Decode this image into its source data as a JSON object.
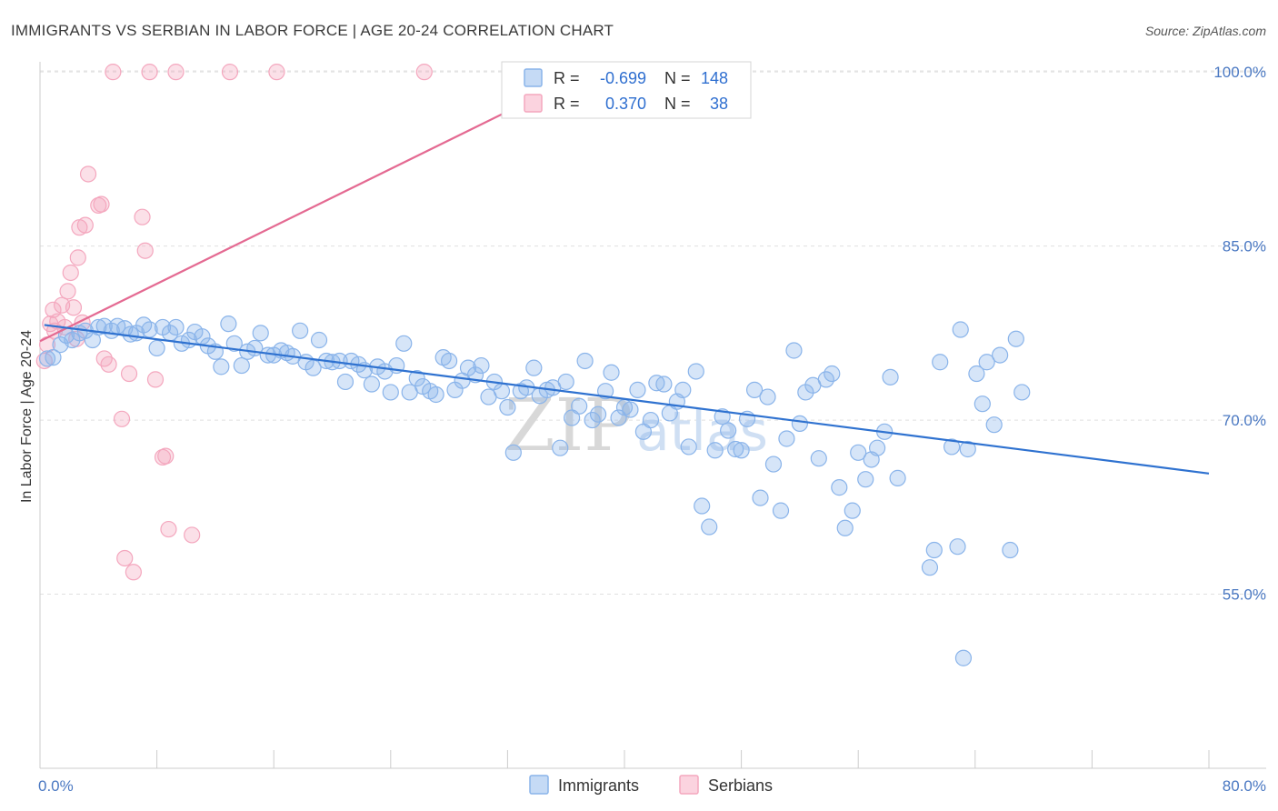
{
  "colors": {
    "immigrants": "#8ab4ea",
    "immigrants_line": "#2f72d0",
    "serbians": "#f4a7be",
    "serbians_line": "#e46a92",
    "tick_label": "#4a78c2",
    "grid": "#e0e0e0"
  },
  "chart_data": {
    "type": "scatter",
    "title": "IMMIGRANTS VS SERBIAN IN LABOR FORCE | AGE 20-24 CORRELATION CHART",
    "source": "Source: ZipAtlas.com",
    "ylabel": "In Labor Force | Age 20-24",
    "xlabel": "",
    "xlim": [
      0,
      80
    ],
    "ylim": [
      40,
      101.5
    ],
    "x_tick_labels": {
      "left": "0.0%",
      "right": "80.0%"
    },
    "y_ticks": [
      {
        "value": 100,
        "label": "100.0%"
      },
      {
        "value": 85,
        "label": "85.0%"
      },
      {
        "value": 70,
        "label": "70.0%"
      },
      {
        "value": 55,
        "label": "55.0%"
      }
    ],
    "legend": {
      "position": "top-center",
      "rows": [
        {
          "r_label": "R =",
          "r_value": "-0.699",
          "n_label": "N =",
          "n_value": "148"
        },
        {
          "r_label": "R =",
          "r_value": "0.370",
          "n_label": "N =",
          "n_value": "38"
        }
      ]
    },
    "watermark": {
      "zip": "ZIP",
      "atlas": "atlas"
    },
    "series": [
      {
        "name": "Immigrants",
        "trend": {
          "x0": 0.3,
          "y0": 78.2,
          "x1": 80,
          "y1": 65.4
        },
        "points": [
          [
            0.5,
            75.3
          ],
          [
            0.9,
            75.4
          ],
          [
            1.4,
            76.5
          ],
          [
            1.8,
            77.3
          ],
          [
            2.2,
            76.9
          ],
          [
            2.7,
            77.5
          ],
          [
            3.1,
            77.7
          ],
          [
            3.6,
            76.9
          ],
          [
            4.0,
            78.0
          ],
          [
            4.4,
            78.1
          ],
          [
            4.9,
            77.7
          ],
          [
            5.3,
            78.1
          ],
          [
            5.8,
            77.9
          ],
          [
            6.2,
            77.4
          ],
          [
            6.6,
            77.5
          ],
          [
            7.1,
            78.2
          ],
          [
            7.5,
            77.8
          ],
          [
            8.0,
            76.2
          ],
          [
            8.4,
            78.0
          ],
          [
            8.9,
            77.5
          ],
          [
            9.3,
            78.0
          ],
          [
            9.7,
            76.6
          ],
          [
            10.2,
            76.9
          ],
          [
            10.6,
            77.6
          ],
          [
            11.1,
            77.2
          ],
          [
            11.5,
            76.4
          ],
          [
            12.0,
            75.9
          ],
          [
            12.4,
            74.6
          ],
          [
            12.9,
            78.3
          ],
          [
            13.3,
            76.6
          ],
          [
            13.8,
            74.7
          ],
          [
            14.2,
            75.9
          ],
          [
            14.7,
            76.2
          ],
          [
            15.1,
            77.5
          ],
          [
            15.6,
            75.6
          ],
          [
            16.0,
            75.6
          ],
          [
            16.5,
            76.0
          ],
          [
            16.9,
            75.8
          ],
          [
            17.3,
            75.5
          ],
          [
            17.8,
            77.7
          ],
          [
            18.2,
            75.0
          ],
          [
            18.7,
            74.5
          ],
          [
            19.1,
            76.9
          ],
          [
            19.6,
            75.1
          ],
          [
            20.0,
            75.0
          ],
          [
            20.5,
            75.1
          ],
          [
            20.9,
            73.3
          ],
          [
            21.3,
            75.1
          ],
          [
            21.8,
            74.8
          ],
          [
            22.2,
            74.3
          ],
          [
            22.7,
            73.1
          ],
          [
            23.1,
            74.6
          ],
          [
            23.6,
            74.2
          ],
          [
            24.0,
            72.4
          ],
          [
            24.4,
            74.7
          ],
          [
            24.9,
            76.6
          ],
          [
            25.3,
            72.4
          ],
          [
            25.8,
            73.6
          ],
          [
            26.2,
            72.9
          ],
          [
            26.7,
            72.5
          ],
          [
            27.1,
            72.2
          ],
          [
            27.6,
            75.4
          ],
          [
            28.0,
            75.1
          ],
          [
            28.4,
            72.6
          ],
          [
            28.9,
            73.4
          ],
          [
            29.3,
            74.5
          ],
          [
            29.8,
            73.9
          ],
          [
            30.2,
            74.7
          ],
          [
            30.7,
            72.0
          ],
          [
            31.1,
            73.3
          ],
          [
            31.6,
            72.5
          ],
          [
            32.0,
            71.1
          ],
          [
            32.4,
            67.2
          ],
          [
            32.9,
            72.5
          ],
          [
            33.3,
            72.8
          ],
          [
            33.8,
            74.5
          ],
          [
            34.2,
            72.1
          ],
          [
            34.7,
            72.6
          ],
          [
            35.1,
            72.8
          ],
          [
            35.6,
            67.6
          ],
          [
            36.0,
            73.3
          ],
          [
            36.4,
            70.2
          ],
          [
            36.9,
            71.2
          ],
          [
            37.3,
            75.1
          ],
          [
            37.8,
            70.0
          ],
          [
            38.2,
            70.5
          ],
          [
            38.7,
            72.5
          ],
          [
            39.1,
            74.1
          ],
          [
            39.6,
            70.2
          ],
          [
            40.0,
            71.1
          ],
          [
            40.4,
            70.9
          ],
          [
            40.9,
            72.6
          ],
          [
            41.3,
            69.0
          ],
          [
            41.8,
            70.0
          ],
          [
            42.2,
            73.2
          ],
          [
            42.7,
            73.1
          ],
          [
            43.1,
            70.6
          ],
          [
            43.6,
            71.6
          ],
          [
            44.0,
            72.6
          ],
          [
            44.4,
            67.7
          ],
          [
            44.9,
            74.2
          ],
          [
            45.3,
            62.6
          ],
          [
            45.8,
            60.8
          ],
          [
            46.2,
            67.4
          ],
          [
            46.7,
            70.3
          ],
          [
            47.1,
            69.1
          ],
          [
            47.6,
            67.5
          ],
          [
            48.0,
            67.4
          ],
          [
            48.4,
            70.1
          ],
          [
            48.9,
            72.6
          ],
          [
            49.3,
            63.3
          ],
          [
            49.8,
            72.0
          ],
          [
            50.2,
            66.2
          ],
          [
            50.7,
            62.2
          ],
          [
            51.1,
            68.4
          ],
          [
            51.6,
            76.0
          ],
          [
            52.0,
            69.7
          ],
          [
            52.4,
            72.4
          ],
          [
            52.9,
            73.0
          ],
          [
            53.3,
            66.7
          ],
          [
            53.8,
            73.5
          ],
          [
            54.2,
            74.0
          ],
          [
            54.7,
            64.2
          ],
          [
            55.1,
            60.7
          ],
          [
            55.6,
            62.2
          ],
          [
            56.0,
            67.2
          ],
          [
            56.5,
            64.9
          ],
          [
            56.9,
            66.6
          ],
          [
            57.3,
            67.6
          ],
          [
            57.8,
            69.0
          ],
          [
            58.2,
            73.7
          ],
          [
            58.7,
            65.0
          ],
          [
            60.9,
            57.3
          ],
          [
            61.2,
            58.8
          ],
          [
            61.6,
            75.0
          ],
          [
            62.4,
            67.7
          ],
          [
            62.8,
            59.1
          ],
          [
            63.0,
            77.8
          ],
          [
            63.2,
            49.5
          ],
          [
            63.5,
            67.5
          ],
          [
            64.1,
            74.0
          ],
          [
            64.5,
            71.4
          ],
          [
            64.8,
            75.0
          ],
          [
            65.3,
            69.6
          ],
          [
            65.7,
            75.6
          ],
          [
            66.4,
            58.8
          ],
          [
            66.8,
            77.0
          ],
          [
            67.2,
            72.4
          ]
        ]
      },
      {
        "name": "Serbians",
        "trend": {
          "x0": 0.0,
          "y0": 76.8,
          "x1": 37.5,
          "y1": 100.0
        },
        "points": [
          [
            0.3,
            75.1
          ],
          [
            0.5,
            76.5
          ],
          [
            0.7,
            78.3
          ],
          [
            0.9,
            79.5
          ],
          [
            1.0,
            77.7
          ],
          [
            1.2,
            78.5
          ],
          [
            1.5,
            79.9
          ],
          [
            1.7,
            78.0
          ],
          [
            1.9,
            81.1
          ],
          [
            2.1,
            82.7
          ],
          [
            2.3,
            79.7
          ],
          [
            2.5,
            77.0
          ],
          [
            2.6,
            84.0
          ],
          [
            2.7,
            86.6
          ],
          [
            2.9,
            78.4
          ],
          [
            3.1,
            86.8
          ],
          [
            3.3,
            91.2
          ],
          [
            4.0,
            88.5
          ],
          [
            4.2,
            88.6
          ],
          [
            4.4,
            75.3
          ],
          [
            4.7,
            74.8
          ],
          [
            5.0,
            100.0
          ],
          [
            5.6,
            70.1
          ],
          [
            5.8,
            58.1
          ],
          [
            6.1,
            74.0
          ],
          [
            6.4,
            56.9
          ],
          [
            7.0,
            87.5
          ],
          [
            7.2,
            84.6
          ],
          [
            7.5,
            100.0
          ],
          [
            7.9,
            73.5
          ],
          [
            8.4,
            66.8
          ],
          [
            8.6,
            66.9
          ],
          [
            8.8,
            60.6
          ],
          [
            9.3,
            100.0
          ],
          [
            10.4,
            60.1
          ],
          [
            13.0,
            100.0
          ],
          [
            16.2,
            100.0
          ],
          [
            26.3,
            100.0
          ]
        ]
      }
    ]
  }
}
